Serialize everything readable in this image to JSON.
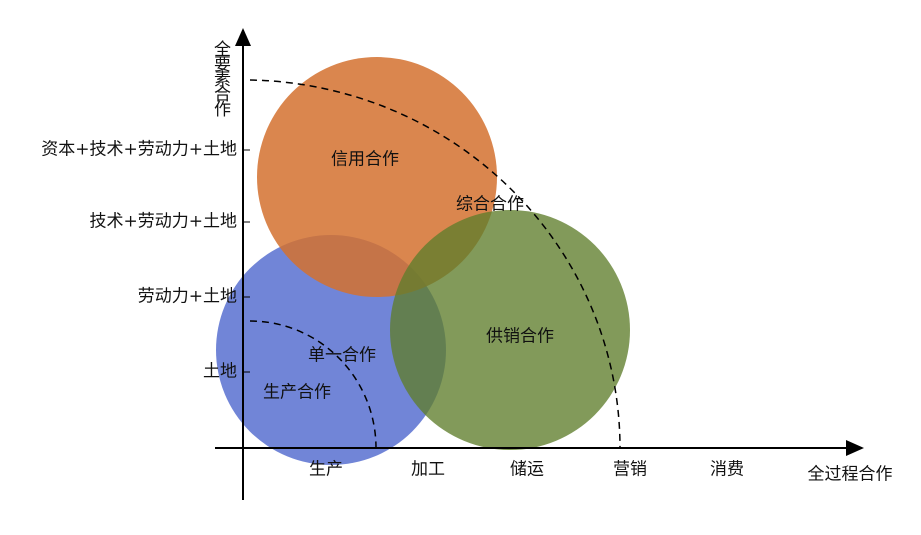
{
  "axes": {
    "y_title": "全要素合作",
    "x_title": "全过程合作",
    "y_levels": [
      "土地",
      "劳动力+土地",
      "技术+劳动力+土地",
      "资本+技术+劳动力+土地"
    ],
    "x_stages": [
      "生产",
      "加工",
      "储运",
      "营销",
      "消费"
    ]
  },
  "regions": [
    {
      "label": "生产合作"
    },
    {
      "label": "信用合作"
    },
    {
      "label": "供销合作"
    },
    {
      "label": "单一合作"
    },
    {
      "label": "综合合作"
    }
  ]
}
